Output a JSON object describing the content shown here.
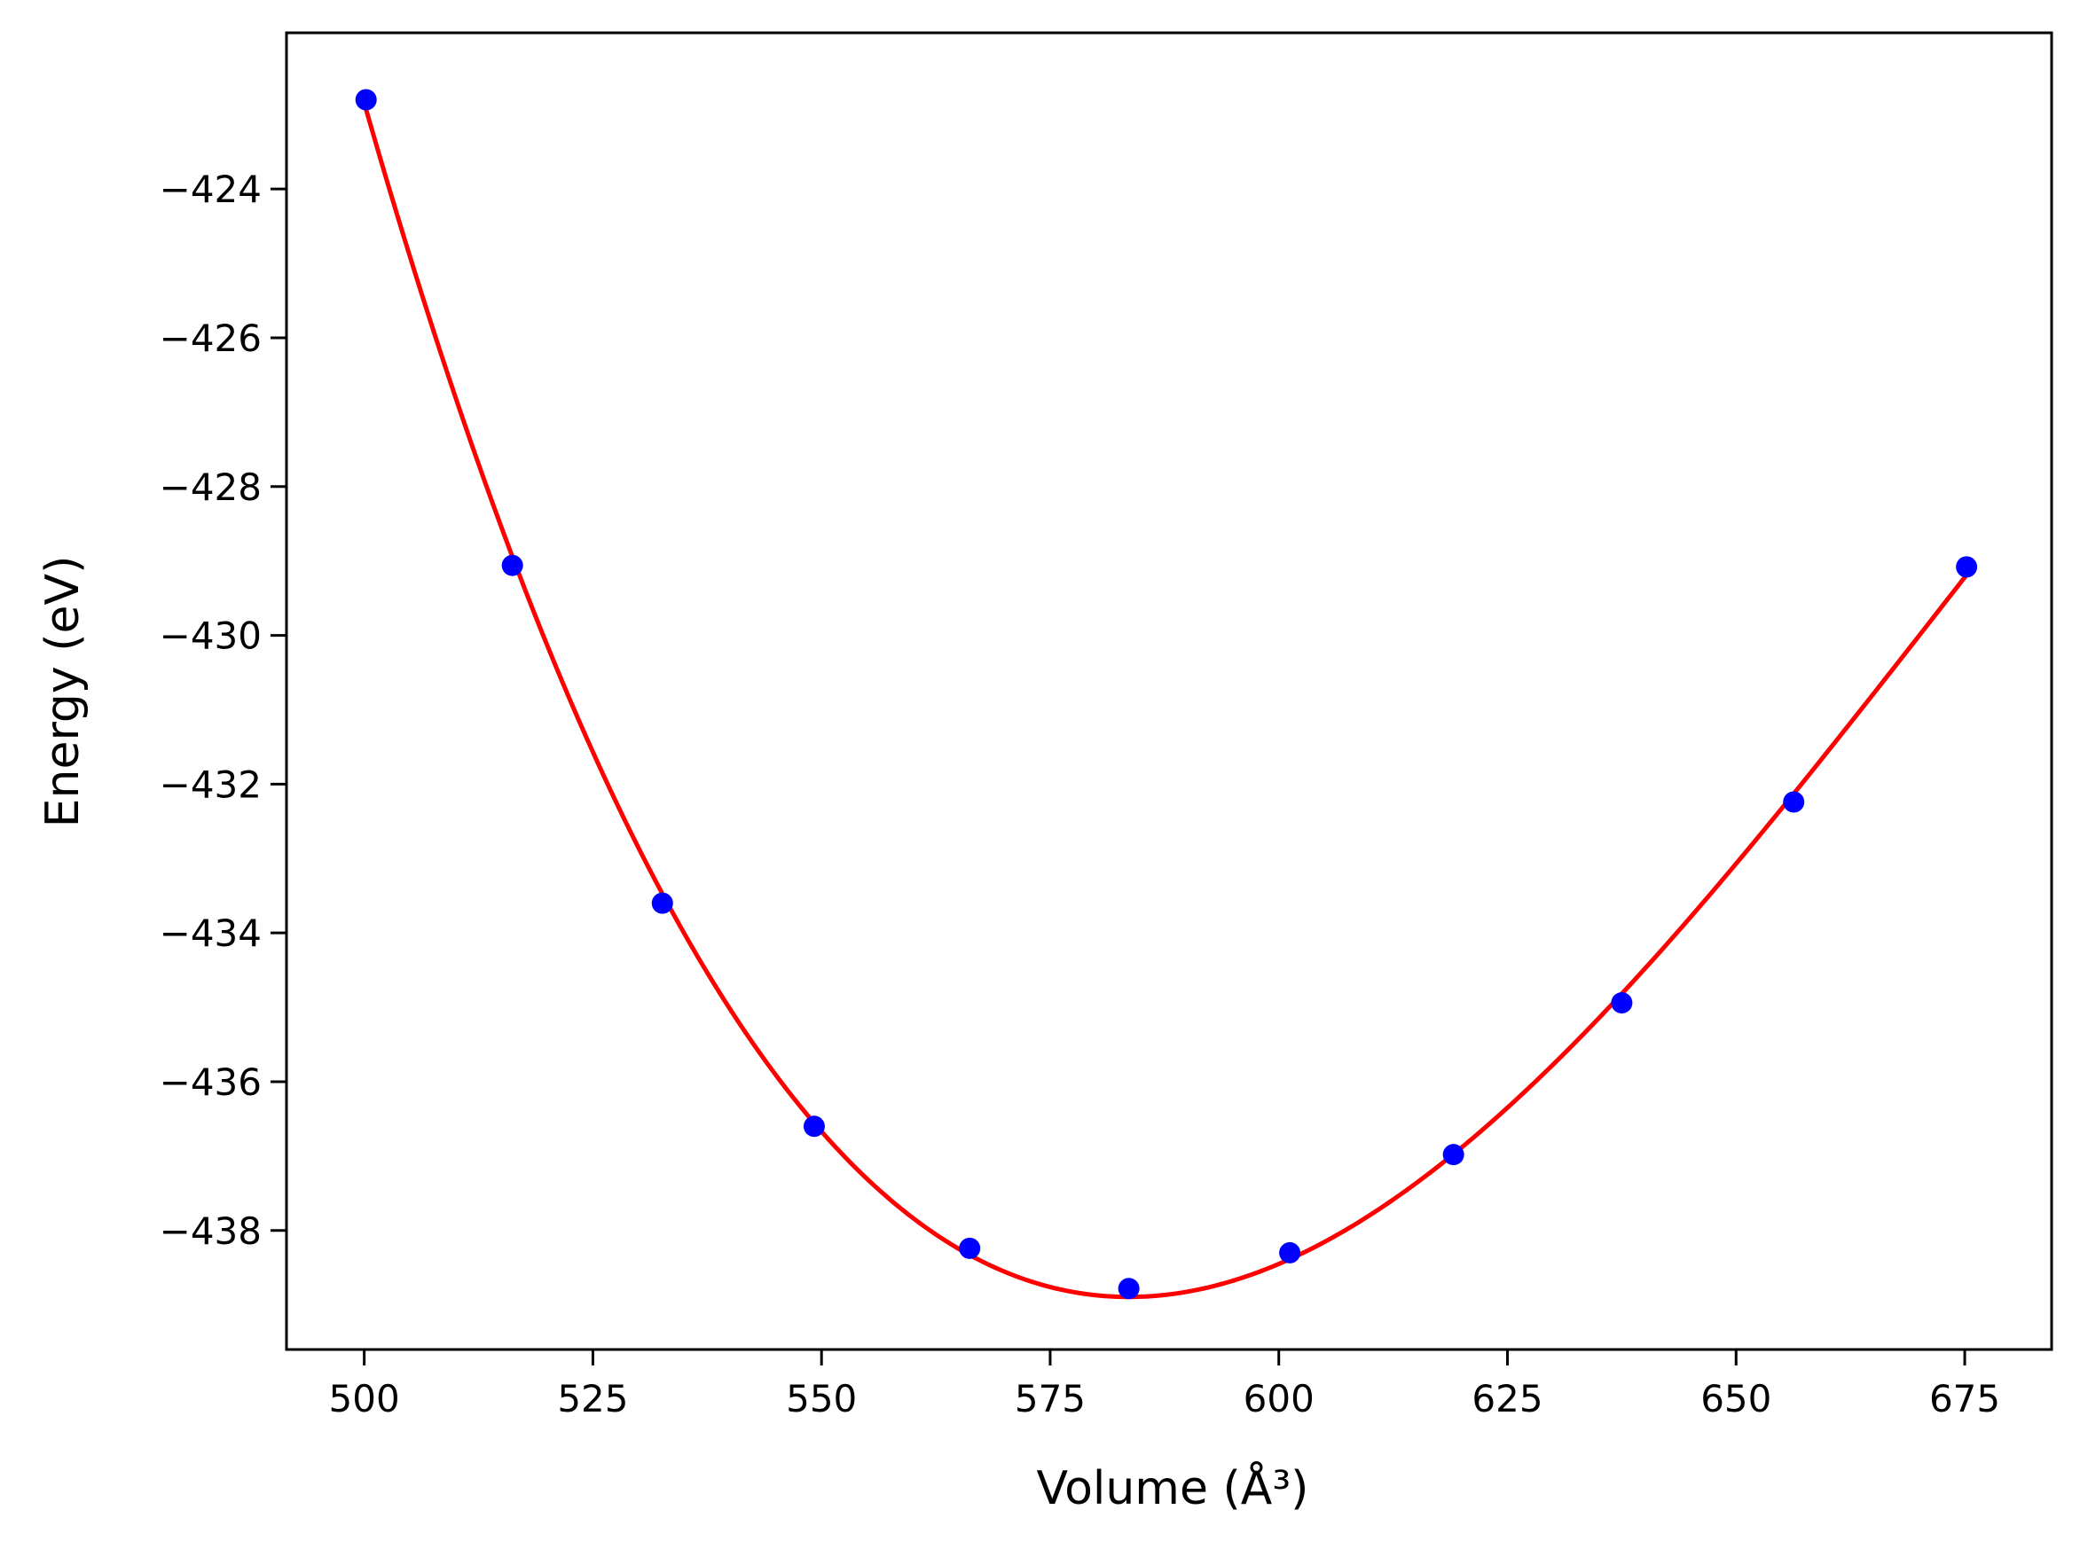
{
  "chart_data": {
    "type": "scatter",
    "title": "",
    "xlabel": "Volume (Å³)",
    "ylabel": "Energy (eV)",
    "xlim": [
      491.5,
      684.5
    ],
    "ylim": [
      -439.6,
      -421.9
    ],
    "xticks": [
      500,
      525,
      550,
      575,
      600,
      625,
      650,
      675
    ],
    "yticks": [
      -424,
      -426,
      -428,
      -430,
      -432,
      -434,
      -436,
      -438
    ],
    "xtick_labels": [
      "500",
      "525",
      "550",
      "575",
      "600",
      "625",
      "650",
      "675"
    ],
    "ytick_labels": [
      "−424",
      "−426",
      "−428",
      "−430",
      "−432",
      "−434",
      "−436",
      "−438"
    ],
    "grid": false,
    "legend": "none",
    "series": [
      {
        "kind": "points",
        "color": "#0000ff",
        "x": [
          500.2,
          516.2,
          532.6,
          549.2,
          566.2,
          583.6,
          601.2,
          619.1,
          637.5,
          656.3,
          675.2
        ],
        "y": [
          -422.8,
          -429.06,
          -433.6,
          -436.6,
          -438.24,
          -438.78,
          -438.3,
          -436.98,
          -434.94,
          -432.24,
          -429.08
        ]
      },
      {
        "kind": "fit",
        "color": "#ff0000",
        "model": "cubic fit through points",
        "x": [
          500.2,
          675.2
        ],
        "y": [
          -422.8,
          -429.08
        ]
      }
    ]
  },
  "labels": {
    "x": "Volume (Å³)",
    "y": "Energy (eV)"
  }
}
